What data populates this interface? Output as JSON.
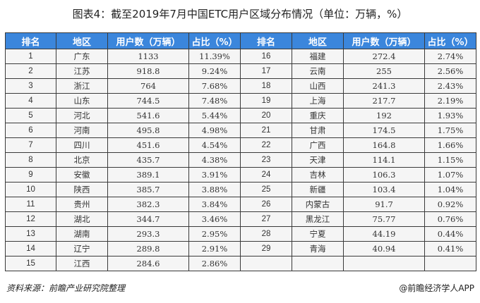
{
  "title": "图表4：截至2019年7月中国ETC用户区域分布情况（单位：万辆，%）",
  "headers": [
    "排名",
    "地区",
    "用户数（万辆）",
    "占比（%）",
    "排名",
    "地区",
    "用户数（万辆）",
    "占比（%）"
  ],
  "rows": [
    [
      "1",
      "广东",
      "1133",
      "11.39%",
      "16",
      "福建",
      "272.4",
      "2.74%"
    ],
    [
      "2",
      "江苏",
      "918.8",
      "9.24%",
      "17",
      "云南",
      "255",
      "2.56%"
    ],
    [
      "3",
      "浙江",
      "764",
      "7.68%",
      "18",
      "山西",
      "241.3",
      "2.43%"
    ],
    [
      "4",
      "山东",
      "744.5",
      "7.48%",
      "19",
      "上海",
      "217.7",
      "2.19%"
    ],
    [
      "5",
      "河北",
      "541.6",
      "5.44%",
      "20",
      "重庆",
      "192",
      "1.93%"
    ],
    [
      "6",
      "河南",
      "495.8",
      "4.98%",
      "21",
      "甘肃",
      "174.5",
      "1.75%"
    ],
    [
      "7",
      "四川",
      "451.6",
      "4.54%",
      "22",
      "广西",
      "164.8",
      "1.66%"
    ],
    [
      "8",
      "北京",
      "435.7",
      "4.38%",
      "23",
      "天津",
      "114.1",
      "1.15%"
    ],
    [
      "9",
      "安徽",
      "389.1",
      "3.91%",
      "24",
      "吉林",
      "106.3",
      "1.07%"
    ],
    [
      "10",
      "陕西",
      "385.7",
      "3.88%",
      "25",
      "新疆",
      "103.4",
      "1.04%"
    ],
    [
      "11",
      "贵州",
      "382.3",
      "3.84%",
      "26",
      "内蒙古",
      "91.7",
      "0.92%"
    ],
    [
      "12",
      "湖北",
      "344.7",
      "3.46%",
      "27",
      "黑龙江",
      "75.77",
      "0.76%"
    ],
    [
      "13",
      "湖南",
      "293.3",
      "2.95%",
      "28",
      "宁夏",
      "44.19",
      "0.44%"
    ],
    [
      "14",
      "辽宁",
      "289.8",
      "2.91%",
      "29",
      "青海",
      "40.94",
      "0.41%"
    ],
    [
      "15",
      "江西",
      "284.6",
      "2.86%",
      "",
      "",
      "",
      ""
    ]
  ],
  "watermark": "前瞻产业研究院",
  "source": "资料来源：前瞻产业研究院整理",
  "brand": "@前瞻经济学人APP",
  "colors": {
    "header_bg": "#3b86dc",
    "cell_bg": "#f5f5f5"
  }
}
